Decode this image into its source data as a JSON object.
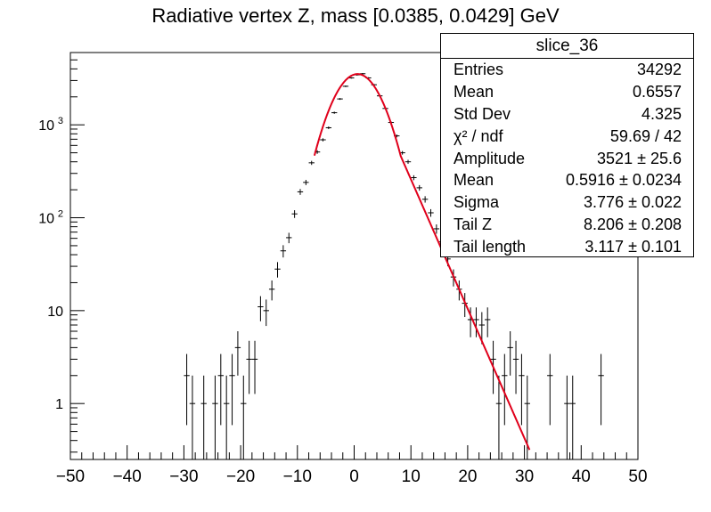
{
  "chart_data": {
    "type": "histogram",
    "title": "Radiative vertex Z, mass [0.0385, 0.0429] GeV",
    "xlabel": "",
    "ylabel": "",
    "xlim": [
      -50,
      50
    ],
    "ylim": [
      0.25,
      6000
    ],
    "y_scale": "log",
    "x_tick_labels": [
      "−50",
      "−40",
      "−30",
      "−20",
      "−10",
      "0",
      "10",
      "20",
      "30",
      "40",
      "50"
    ],
    "y_tick_labels": [
      {
        "value": 1,
        "label": "1"
      },
      {
        "value": 10,
        "label": "10"
      },
      {
        "value": 100,
        "label": "10",
        "sup": "2"
      },
      {
        "value": 1000,
        "label": "10",
        "sup": "3"
      }
    ],
    "bin_width": 1,
    "series": [
      {
        "type": "points-with-errors",
        "points": [
          [
            -29.5,
            2
          ],
          [
            -28.5,
            1
          ],
          [
            -26.5,
            1
          ],
          [
            -24.5,
            1
          ],
          [
            -23.5,
            2
          ],
          [
            -22.5,
            1
          ],
          [
            -21.5,
            2
          ],
          [
            -20.5,
            4
          ],
          [
            -19.5,
            1
          ],
          [
            -18.5,
            3
          ],
          [
            -17.5,
            3
          ],
          [
            -16.5,
            11
          ],
          [
            -15.5,
            10
          ],
          [
            -14.5,
            17
          ],
          [
            -13.5,
            28
          ],
          [
            -12.5,
            44
          ],
          [
            -11.5,
            61
          ],
          [
            -10.5,
            110
          ],
          [
            -9.5,
            190
          ],
          [
            -8.5,
            240
          ],
          [
            -7.5,
            390
          ],
          [
            -6.5,
            510
          ],
          [
            -5.5,
            690
          ],
          [
            -4.5,
            930
          ],
          [
            -3.5,
            1350
          ],
          [
            -2.5,
            1900
          ],
          [
            -1.5,
            2600
          ],
          [
            -0.5,
            3200
          ],
          [
            0.5,
            3450
          ],
          [
            1.5,
            3550
          ],
          [
            2.5,
            3200
          ],
          [
            3.5,
            2700
          ],
          [
            4.5,
            2050
          ],
          [
            5.5,
            1500
          ],
          [
            6.5,
            1060
          ],
          [
            7.5,
            760
          ],
          [
            8.5,
            500
          ],
          [
            9.5,
            400
          ],
          [
            10.5,
            270
          ],
          [
            11.5,
            210
          ],
          [
            12.5,
            158
          ],
          [
            13.5,
            113
          ],
          [
            14.5,
            76
          ],
          [
            15.5,
            55
          ],
          [
            16.5,
            36
          ],
          [
            17.5,
            23
          ],
          [
            18.5,
            17
          ],
          [
            19.5,
            12
          ],
          [
            20.5,
            8
          ],
          [
            21.5,
            8
          ],
          [
            22.5,
            7
          ],
          [
            23.5,
            8
          ],
          [
            24.5,
            3
          ],
          [
            25.5,
            1
          ],
          [
            26.5,
            2
          ],
          [
            27.5,
            4
          ],
          [
            28.5,
            3
          ],
          [
            29.5,
            2
          ],
          [
            30.5,
            1
          ],
          [
            34.5,
            2
          ],
          [
            37.5,
            1
          ],
          [
            38.5,
            1
          ],
          [
            43.5,
            2
          ]
        ]
      },
      {
        "type": "fit-curve",
        "x_range": [
          -7,
          31
        ],
        "note_function": "gaussian core with exponential tail",
        "amplitude": 3521,
        "mean": 0.5916,
        "sigma": 3.776,
        "tail_z": 8.206,
        "tail_length": 3.117
      }
    ],
    "colors": {
      "points": "#000000",
      "fit": "#e0001b"
    }
  },
  "stats": {
    "title": "slice_36",
    "rows": [
      {
        "label": "Entries",
        "value": "34292"
      },
      {
        "label": "Mean",
        "value": "0.6557"
      },
      {
        "label": "Std Dev",
        "value": "4.325"
      },
      {
        "label": "χ² / ndf",
        "value": "59.69 / 42"
      },
      {
        "label": "Amplitude",
        "value": "3521 ± 25.6"
      },
      {
        "label": "Mean",
        "value": "0.5916 ± 0.0234"
      },
      {
        "label": "Sigma",
        "value": "3.776 ± 0.022"
      },
      {
        "label": "Tail Z",
        "value": "8.206 ± 0.208"
      },
      {
        "label": "Tail length",
        "value": "3.117 ± 0.101"
      }
    ]
  }
}
